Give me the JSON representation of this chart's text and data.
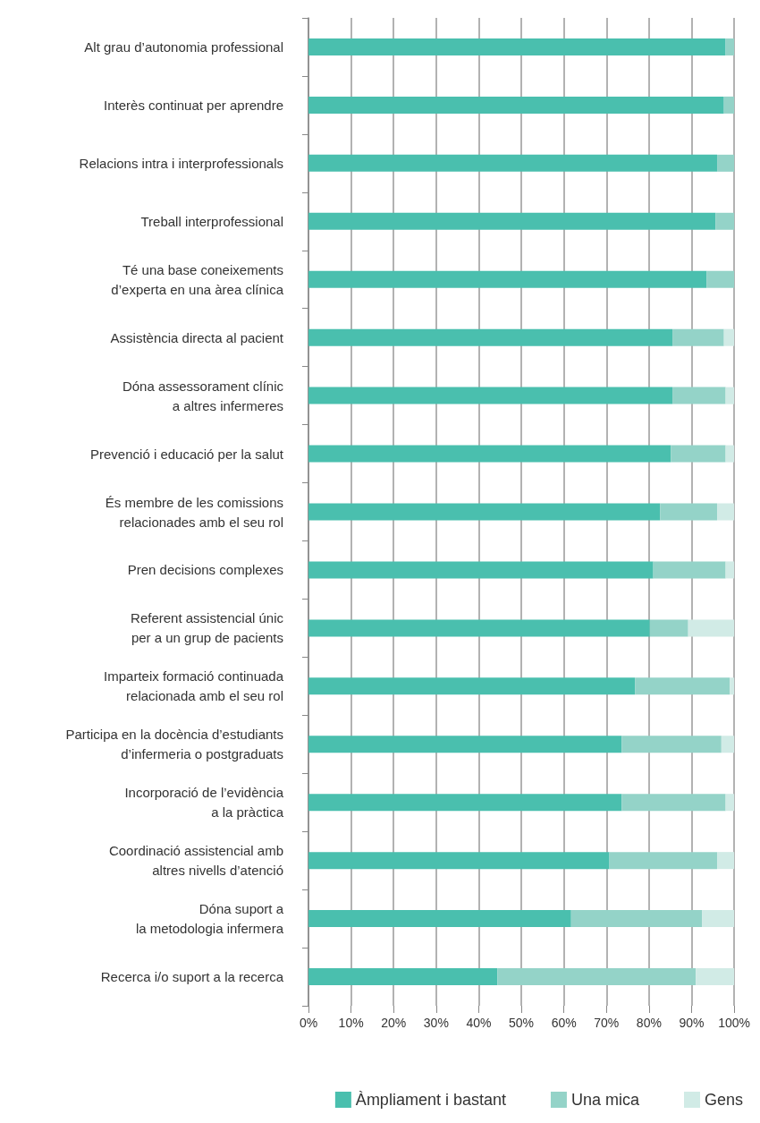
{
  "chart_data": {
    "type": "bar",
    "orientation": "horizontal",
    "stacked": true,
    "grid": "x",
    "legend": "bottom",
    "categories": [
      "Alt grau d’autonomia professional",
      "Interès continuat per aprendre",
      "Relacions intra i interprofessionals",
      "Treball interprofessional",
      "Té una base coneixements\nd’experta en una àrea clínica",
      "Assistència directa al pacient",
      "Dóna assessorament clínic\na altres infermeres",
      "Prevenció i educació per la salut",
      "És membre de les comissions\nrelacionades amb el seu rol",
      "Pren decisions complexes",
      "Referent assistencial únic\nper a un grup de pacients",
      "Imparteix formació continuada\nrelacionada amb el seu rol",
      "Participa en la docència d’estudiants\nd’infermeria o postgraduats",
      "Incorporació de l’evidència\na la pràctica",
      "Coordinació assistencial amb\naltres nivells d’atenció",
      "Dóna suport a\nla metodologia infermera",
      "Recerca i/o suport a la recerca"
    ],
    "series": [
      {
        "name": "Àmpliament i bastant",
        "color": "#4abfae",
        "values": [
          98.0,
          97.6,
          96.0,
          95.6,
          93.5,
          85.5,
          85.5,
          85.1,
          82.6,
          81.0,
          80.2,
          76.7,
          73.6,
          73.6,
          70.7,
          61.7,
          44.4
        ]
      },
      {
        "name": "Una mica",
        "color": "#94d3c8",
        "values": [
          2.0,
          2.4,
          4.0,
          4.4,
          6.5,
          12.1,
          12.5,
          12.9,
          13.4,
          17.0,
          9.0,
          22.3,
          23.4,
          24.4,
          25.3,
          30.8,
          46.6
        ]
      },
      {
        "name": "Gens",
        "color": "#d1ebe6",
        "values": [
          0,
          0,
          0,
          0,
          0,
          2.4,
          2.0,
          2.0,
          4.0,
          2.0,
          10.8,
          1.0,
          3.0,
          2.0,
          4.0,
          7.5,
          9.0
        ]
      }
    ],
    "xlim": [
      0,
      100
    ],
    "xticks": [
      {
        "value": 0,
        "label": "0%"
      },
      {
        "value": 10,
        "label": "10%"
      },
      {
        "value": 20,
        "label": "20%"
      },
      {
        "value": 30,
        "label": "30%"
      },
      {
        "value": 40,
        "label": "40%"
      },
      {
        "value": 50,
        "label": "50%"
      },
      {
        "value": 60,
        "label": "60%"
      },
      {
        "value": 70,
        "label": "70%"
      },
      {
        "value": 80,
        "label": "80%"
      },
      {
        "value": 90,
        "label": "90%"
      },
      {
        "value": 100,
        "label": "100%"
      }
    ]
  }
}
